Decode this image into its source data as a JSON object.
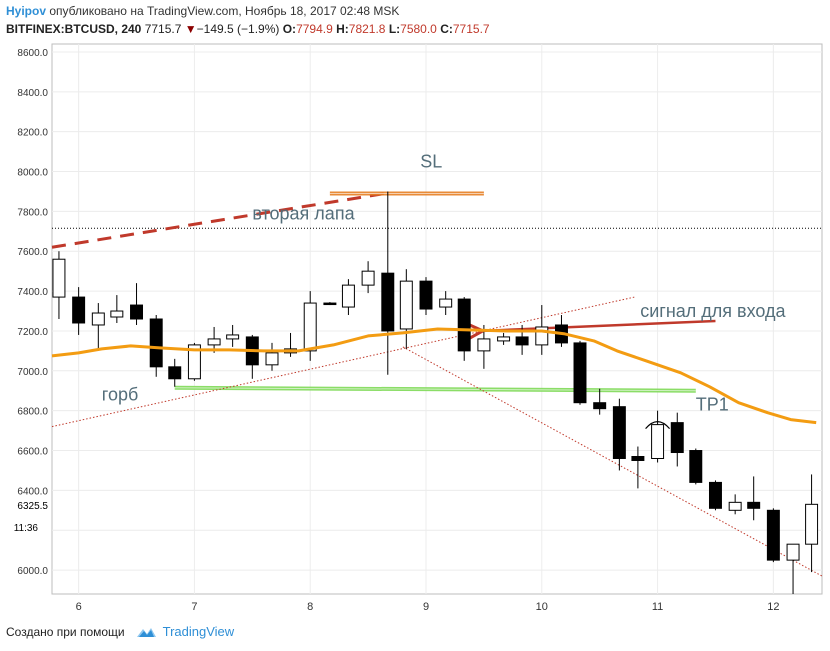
{
  "header": {
    "author": "Hyipov",
    "published": "опубликовано на TradingView.com, Ноябрь 18, 2017 02:48 MSK",
    "symbol": "BITFINEX:BTCUSD, 240",
    "last": "7715.7",
    "change": "−149.5 (−1.9%)",
    "o_label": "O:",
    "o_value": "7794.9",
    "h_label": "H:",
    "h_value": "7821.8",
    "l_label": "L:",
    "l_value": "7580.0",
    "c_label": "C:",
    "c_value": "7715.7"
  },
  "footer": {
    "created_with": "Создано при помощи",
    "brand": "TradingView",
    "logo_icon": "tradingview-cloud-icon"
  },
  "colors": {
    "bull": "#ffffff",
    "bear": "#000000",
    "ma": "#f39c12",
    "red_line": "#c0392b",
    "green_line": "#7ed957",
    "grid": "#ececec",
    "annotation_text": "#546e7a"
  },
  "chart_data": {
    "type": "candlestick",
    "ylim": [
      5880,
      8640
    ],
    "y_ticks": [
      6000,
      6200,
      6400,
      6600,
      6800,
      7000,
      7200,
      7400,
      7600,
      7800,
      8000,
      8200,
      8400,
      8600
    ],
    "y_tick_labels": [
      "6000.0",
      "6200.0",
      "6400.0",
      "6600.0",
      "6800.0",
      "7000.0",
      "7200.0",
      "7400.0",
      "7600.0",
      "7800.0",
      "8000.0",
      "8200.0",
      "8400.0",
      "8600.0"
    ],
    "x_ticks": [
      6,
      7,
      8,
      9,
      10,
      11,
      12
    ],
    "x_tick_labels": [
      "6",
      "7",
      "8",
      "9",
      "10",
      "11",
      "12"
    ],
    "xlim": [
      5.77,
      12.42
    ],
    "price_line": {
      "value": 7715.7
    },
    "crosshair_label": {
      "value": 6325.5,
      "label": "6325.5"
    },
    "time_label": {
      "value": 6215,
      "label": "11:36"
    },
    "candles": [
      {
        "x": 5.83,
        "o": 7370,
        "h": 7600,
        "l": 7260,
        "c": 7560
      },
      {
        "x": 6.0,
        "o": 7370,
        "h": 7420,
        "l": 7180,
        "c": 7240
      },
      {
        "x": 6.17,
        "o": 7230,
        "h": 7340,
        "l": 7100,
        "c": 7290
      },
      {
        "x": 6.33,
        "o": 7270,
        "h": 7380,
        "l": 7240,
        "c": 7300
      },
      {
        "x": 6.5,
        "o": 7330,
        "h": 7440,
        "l": 7230,
        "c": 7260
      },
      {
        "x": 6.67,
        "o": 7260,
        "h": 7280,
        "l": 6970,
        "c": 7020
      },
      {
        "x": 6.83,
        "o": 7020,
        "h": 7060,
        "l": 6920,
        "c": 6960
      },
      {
        "x": 7.0,
        "o": 6960,
        "h": 7140,
        "l": 6950,
        "c": 7130
      },
      {
        "x": 7.17,
        "o": 7130,
        "h": 7220,
        "l": 7090,
        "c": 7160
      },
      {
        "x": 7.33,
        "o": 7160,
        "h": 7230,
        "l": 7120,
        "c": 7180
      },
      {
        "x": 7.5,
        "o": 7170,
        "h": 7180,
        "l": 6960,
        "c": 7030
      },
      {
        "x": 7.67,
        "o": 7030,
        "h": 7140,
        "l": 7000,
        "c": 7090
      },
      {
        "x": 7.83,
        "o": 7090,
        "h": 7190,
        "l": 7070,
        "c": 7110
      },
      {
        "x": 8.0,
        "o": 7100,
        "h": 7400,
        "l": 7050,
        "c": 7340
      },
      {
        "x": 8.17,
        "o": 7340,
        "h": 7345,
        "l": 7330,
        "c": 7335
      },
      {
        "x": 8.33,
        "o": 7320,
        "h": 7460,
        "l": 7280,
        "c": 7430
      },
      {
        "x": 8.5,
        "o": 7430,
        "h": 7550,
        "l": 7390,
        "c": 7500
      },
      {
        "x": 8.67,
        "o": 7490,
        "h": 7900,
        "l": 6980,
        "c": 7200
      },
      {
        "x": 8.83,
        "o": 7210,
        "h": 7510,
        "l": 7110,
        "c": 7450
      },
      {
        "x": 9.0,
        "o": 7450,
        "h": 7470,
        "l": 7280,
        "c": 7310
      },
      {
        "x": 9.17,
        "o": 7320,
        "h": 7400,
        "l": 7280,
        "c": 7360
      },
      {
        "x": 9.33,
        "o": 7360,
        "h": 7370,
        "l": 7050,
        "c": 7100
      },
      {
        "x": 9.5,
        "o": 7100,
        "h": 7230,
        "l": 7010,
        "c": 7160
      },
      {
        "x": 9.67,
        "o": 7150,
        "h": 7190,
        "l": 7130,
        "c": 7170
      },
      {
        "x": 9.83,
        "o": 7170,
        "h": 7230,
        "l": 7080,
        "c": 7130
      },
      {
        "x": 10.0,
        "o": 7130,
        "h": 7330,
        "l": 7080,
        "c": 7220
      },
      {
        "x": 10.17,
        "o": 7230,
        "h": 7280,
        "l": 7120,
        "c": 7140
      },
      {
        "x": 10.33,
        "o": 7140,
        "h": 7150,
        "l": 6830,
        "c": 6840
      },
      {
        "x": 10.5,
        "o": 6840,
        "h": 6910,
        "l": 6780,
        "c": 6810
      },
      {
        "x": 10.67,
        "o": 6820,
        "h": 6860,
        "l": 6500,
        "c": 6560
      },
      {
        "x": 10.83,
        "o": 6570,
        "h": 6620,
        "l": 6410,
        "c": 6550
      },
      {
        "x": 11.0,
        "o": 6560,
        "h": 6800,
        "l": 6540,
        "c": 6730
      },
      {
        "x": 11.17,
        "o": 6740,
        "h": 6790,
        "l": 6520,
        "c": 6590
      },
      {
        "x": 11.33,
        "o": 6600,
        "h": 6610,
        "l": 6430,
        "c": 6440
      },
      {
        "x": 11.5,
        "o": 6440,
        "h": 6450,
        "l": 6300,
        "c": 6310
      },
      {
        "x": 11.67,
        "o": 6300,
        "h": 6380,
        "l": 6280,
        "c": 6340
      },
      {
        "x": 11.83,
        "o": 6340,
        "h": 6470,
        "l": 6250,
        "c": 6310
      },
      {
        "x": 12.0,
        "o": 6300,
        "h": 6310,
        "l": 6040,
        "c": 6050
      },
      {
        "x": 12.17,
        "o": 6050,
        "h": 6130,
        "l": 5880,
        "c": 6130
      },
      {
        "x": 12.33,
        "o": 6130,
        "h": 6480,
        "l": 5990,
        "c": 6330
      }
    ],
    "moving_average": [
      {
        "x": 5.77,
        "y": 7075
      },
      {
        "x": 6.0,
        "y": 7090
      },
      {
        "x": 6.2,
        "y": 7110
      },
      {
        "x": 6.45,
        "y": 7125
      },
      {
        "x": 6.7,
        "y": 7115
      },
      {
        "x": 7.0,
        "y": 7105
      },
      {
        "x": 7.3,
        "y": 7105
      },
      {
        "x": 7.6,
        "y": 7100
      },
      {
        "x": 7.9,
        "y": 7100
      },
      {
        "x": 8.2,
        "y": 7130
      },
      {
        "x": 8.5,
        "y": 7175
      },
      {
        "x": 8.8,
        "y": 7190
      },
      {
        "x": 9.1,
        "y": 7210
      },
      {
        "x": 9.4,
        "y": 7205
      },
      {
        "x": 9.7,
        "y": 7200
      },
      {
        "x": 10.0,
        "y": 7200
      },
      {
        "x": 10.2,
        "y": 7185
      },
      {
        "x": 10.45,
        "y": 7150
      },
      {
        "x": 10.65,
        "y": 7100
      },
      {
        "x": 10.9,
        "y": 7050
      },
      {
        "x": 11.2,
        "y": 6990
      },
      {
        "x": 11.45,
        "y": 6920
      },
      {
        "x": 11.7,
        "y": 6840
      },
      {
        "x": 11.95,
        "y": 6790
      },
      {
        "x": 12.15,
        "y": 6755
      },
      {
        "x": 12.37,
        "y": 6740
      }
    ],
    "lines": [
      {
        "name": "dashed-resistance",
        "style": "dashed-thick",
        "color": "#c0392b",
        "points": [
          {
            "x": 5.77,
            "y": 7620
          },
          {
            "x": 8.7,
            "y": 7895
          }
        ]
      },
      {
        "name": "sl-line",
        "style": "solid-double",
        "color": "#e67e22",
        "points": [
          {
            "x": 8.17,
            "y": 7890
          },
          {
            "x": 9.5,
            "y": 7890
          }
        ]
      },
      {
        "name": "green-neckline",
        "style": "solid-double",
        "color": "#7ed957",
        "points": [
          {
            "x": 6.83,
            "y": 6915
          },
          {
            "x": 11.33,
            "y": 6900
          }
        ]
      },
      {
        "name": "rising-dotted",
        "style": "dotted",
        "color": "#c0392b",
        "points": [
          {
            "x": 5.77,
            "y": 6720
          },
          {
            "x": 10.8,
            "y": 7370
          }
        ]
      },
      {
        "name": "falling-dotted",
        "style": "dotted",
        "color": "#c0392b",
        "points": [
          {
            "x": 8.8,
            "y": 7120
          },
          {
            "x": 12.42,
            "y": 5970
          }
        ]
      },
      {
        "name": "signal-arrow",
        "style": "arrow",
        "color": "#c0392b",
        "points": [
          {
            "x": 11.5,
            "y": 7250
          },
          {
            "x": 9.47,
            "y": 7200
          }
        ]
      }
    ],
    "annotations": [
      {
        "name": "sl-label",
        "text": "SL",
        "x": 8.95,
        "y": 8020
      },
      {
        "name": "second-leg-label",
        "text": "вторая лапа",
        "x": 7.5,
        "y": 7760
      },
      {
        "name": "signal-label",
        "text": "сигнал для входа",
        "x": 10.85,
        "y": 7270
      },
      {
        "name": "hump-label",
        "text": "горб",
        "x": 6.2,
        "y": 6850
      },
      {
        "name": "tp1-label",
        "text": "TP1",
        "x": 11.33,
        "y": 6800
      }
    ]
  }
}
